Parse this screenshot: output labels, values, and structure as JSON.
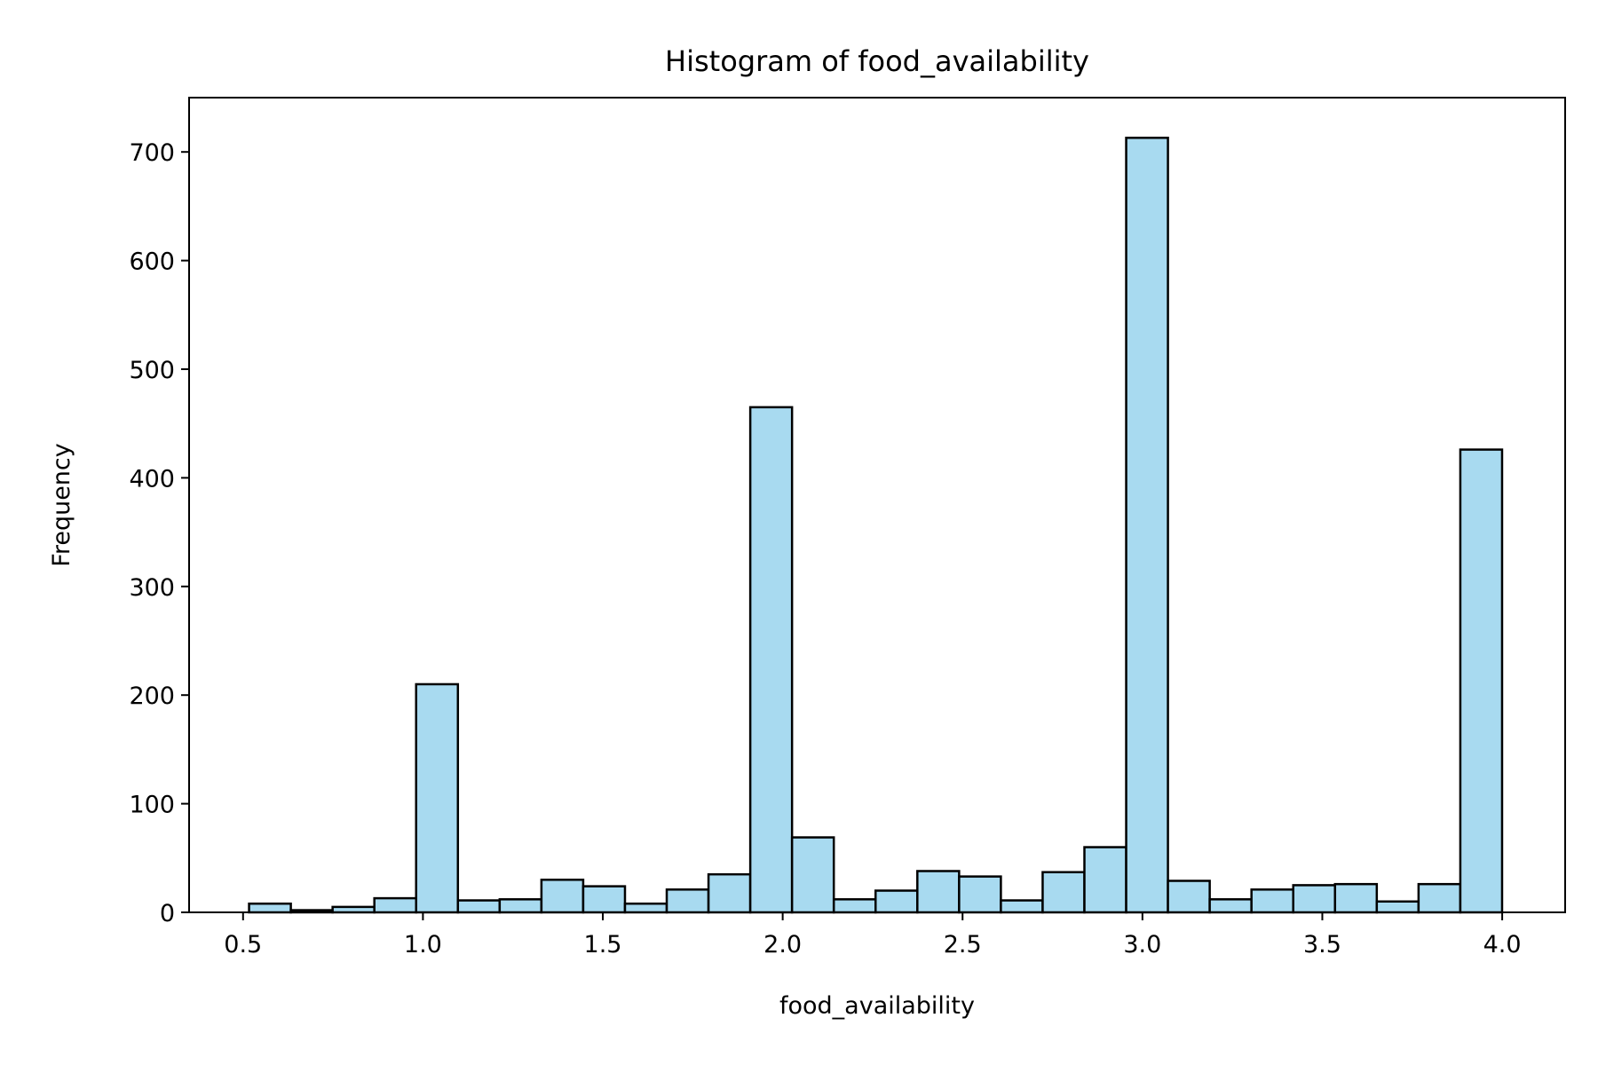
{
  "chart_data": {
    "type": "bar",
    "title": "Histogram of food_availability",
    "xlabel": "food_availability",
    "ylabel": "Frequency",
    "xlim": [
      0.35,
      4.175
    ],
    "ylim": [
      0,
      750
    ],
    "x_ticks": [
      0.5,
      1.0,
      1.5,
      2.0,
      2.5,
      3.0,
      3.5,
      4.0
    ],
    "x_tick_labels": [
      "0.5",
      "1.0",
      "1.5",
      "2.0",
      "2.5",
      "3.0",
      "3.5",
      "4.0"
    ],
    "y_ticks": [
      0,
      100,
      200,
      300,
      400,
      500,
      600,
      700
    ],
    "y_tick_labels": [
      "0",
      "100",
      "200",
      "300",
      "400",
      "500",
      "600",
      "700"
    ],
    "bin_start": 0.5167,
    "bin_width": 0.1161,
    "values": [
      8,
      2,
      5,
      13,
      210,
      11,
      12,
      30,
      24,
      8,
      21,
      35,
      465,
      69,
      12,
      20,
      38,
      33,
      11,
      37,
      60,
      713,
      29,
      12,
      21,
      25,
      26,
      10,
      26,
      426
    ],
    "bar_color": "#a8daf0",
    "edge_color": "#000000",
    "grid": false
  }
}
